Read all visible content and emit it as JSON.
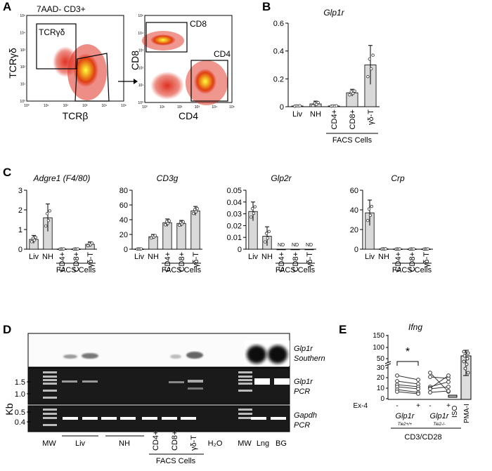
{
  "panels": {
    "A": {
      "label": "A",
      "gate_title": "7AAD- CD3+",
      "plot1": {
        "xlabel": "TCRβ",
        "ylabel": "TCRγδ",
        "gate": "TCRγδ",
        "ticks": [
          "10⁰",
          "10¹",
          "10²",
          "10³",
          "10⁴",
          "10⁵"
        ]
      },
      "plot2": {
        "xlabel": "CD4",
        "ylabel": "CD8",
        "gate_cd8": "CD8",
        "gate_cd4": "CD4",
        "ticks": [
          "10⁰",
          "10¹",
          "10²",
          "10³",
          "10⁴",
          "10⁵"
        ]
      }
    },
    "B": {
      "label": "B"
    },
    "C": {
      "label": "C",
      "group_label": "FACS Cells"
    },
    "D": {
      "label": "D",
      "kb_label": "Kb",
      "kb_ticks": [
        "1.5",
        "1.0",
        "0.5",
        "0.4"
      ],
      "band_labels": [
        [
          "Glp1r",
          "Southern"
        ],
        [
          "Glp1r",
          "PCR"
        ],
        [
          "Gapdh",
          "PCR"
        ]
      ],
      "lanes": [
        "MW",
        "Liv",
        "NH",
        "CD4+",
        "CD8+",
        "γδ-T",
        "H₂O",
        "MW",
        "Lng",
        "BG"
      ],
      "group_label": "FACS Cells"
    },
    "E": {
      "label": "E",
      "title": "Ifng",
      "yticks": [
        "0",
        "10",
        "20",
        "30",
        "50",
        "100",
        "150"
      ],
      "significance": "*",
      "treatment_label": "Ex-4",
      "treatment_states": [
        "-",
        "+",
        "-",
        "+"
      ],
      "genotype1": "Glp1r",
      "genotype1_sup": "Tie2+/+",
      "genotype2": "Glp1r",
      "genotype2_sup": "Tie2-/-",
      "iso_label": "ISO",
      "pma_label": "PMA-I",
      "stim_label": "CD3/CD28"
    }
  },
  "chart_data": [
    {
      "id": "B-glp1r",
      "type": "bar",
      "title": "Glp1r",
      "categories": [
        "Liv",
        "NH",
        "CD4+",
        "CD8+",
        "γδ-T"
      ],
      "values": [
        0.005,
        0.02,
        0.005,
        0.1,
        0.3
      ],
      "errors": [
        0.003,
        0.02,
        0.003,
        0.025,
        0.14
      ],
      "yticks": [
        0,
        0.2,
        0.4,
        0.6
      ],
      "ylim": [
        0,
        0.6
      ],
      "group_label": "FACS Cells"
    },
    {
      "id": "C-adgre1",
      "type": "bar",
      "title": "Adgre1 (F4/80)",
      "categories": [
        "Liv",
        "NH",
        "CD4+",
        "CD8+",
        "γδ-T"
      ],
      "values": [
        0.5,
        1.6,
        0.01,
        0.01,
        0.25
      ],
      "errors": [
        0.2,
        0.7,
        0.01,
        0.01,
        0.12
      ],
      "yticks": [
        0,
        1,
        2,
        3
      ],
      "ylim": [
        0,
        3
      ]
    },
    {
      "id": "C-cd3g",
      "type": "bar",
      "title": "CD3g",
      "categories": [
        "Liv",
        "NH",
        "CD4+",
        "CD8+",
        "γδ-T"
      ],
      "values": [
        0.3,
        17,
        36,
        35,
        52
      ],
      "errors": [
        0.3,
        3,
        5,
        4,
        6
      ],
      "yticks": [
        0,
        20,
        40,
        60,
        80
      ],
      "ylim": [
        0,
        80
      ]
    },
    {
      "id": "C-glp2r",
      "type": "bar",
      "title": "Glp2r",
      "categories": [
        "Liv",
        "NH",
        "CD4+",
        "CD8+",
        "γδ-T"
      ],
      "values": [
        0.032,
        0.011,
        0,
        0,
        0
      ],
      "errors": [
        0.008,
        0.008,
        0,
        0,
        0
      ],
      "annotations": [
        "",
        "",
        "ND",
        "ND",
        "ND"
      ],
      "yticks": [
        0,
        0.01,
        0.02,
        0.03,
        0.04,
        0.05
      ],
      "ylim": [
        0,
        0.05
      ]
    },
    {
      "id": "C-crp",
      "type": "bar",
      "title": "Crp",
      "categories": [
        "Liv",
        "NH",
        "CD4+",
        "CD8+",
        "γδ-T"
      ],
      "values": [
        37,
        0.3,
        0.2,
        0.2,
        0.2
      ],
      "errors": [
        13,
        0.2,
        0.2,
        0.2,
        0.2
      ],
      "yticks": [
        0,
        20,
        40,
        60
      ],
      "ylim": [
        0,
        60
      ]
    }
  ]
}
